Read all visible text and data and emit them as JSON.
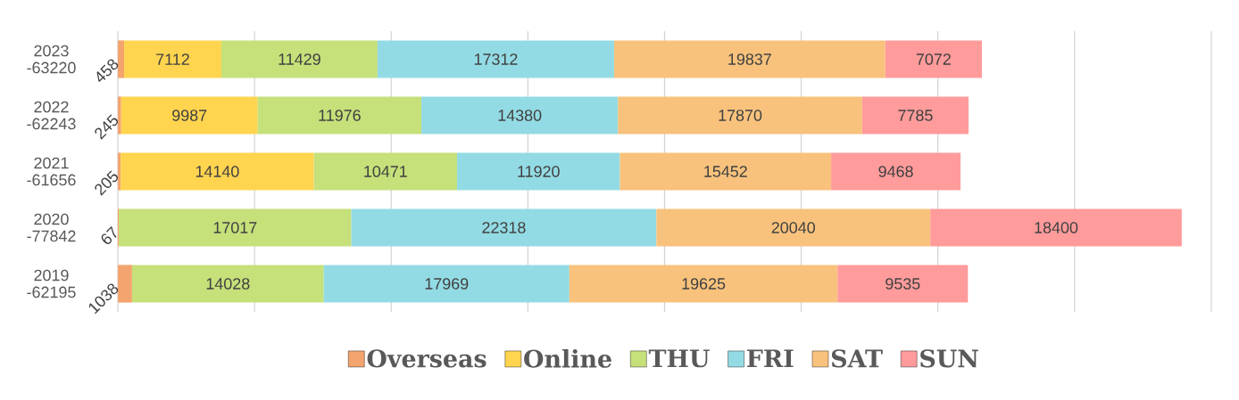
{
  "chart_data": {
    "type": "bar",
    "orientation": "horizontal",
    "stacked": true,
    "categories": [
      "2023 -63220",
      "2022 -62243",
      "2021 -61656",
      "2020 -77842",
      "2019 -62195"
    ],
    "series": [
      {
        "name": "Overseas",
        "color": "#f4a46e",
        "values": [
          458,
          245,
          205,
          67,
          1038
        ]
      },
      {
        "name": "Online",
        "color": "#ffd44f",
        "values": [
          7112,
          9987,
          14140,
          null,
          null
        ]
      },
      {
        "name": "THU",
        "color": "#c6e07a",
        "values": [
          11429,
          11976,
          10471,
          17017,
          14028
        ]
      },
      {
        "name": "FRI",
        "color": "#93dbe4",
        "values": [
          17312,
          14380,
          11920,
          22318,
          17969
        ]
      },
      {
        "name": "SAT",
        "color": "#f8c27c",
        "values": [
          19837,
          17870,
          15452,
          20040,
          19625
        ]
      },
      {
        "name": "SUN",
        "color": "#ff9b9b",
        "values": [
          7072,
          7785,
          9468,
          18400,
          9535
        ]
      }
    ],
    "xlim": [
      0,
      80000
    ],
    "xticks": [
      {
        "value": 0,
        "label": null
      },
      {
        "value": 10000,
        "label": null
      },
      {
        "value": 20000,
        "label": null
      },
      {
        "value": 30000,
        "label": null
      },
      {
        "value": 40000,
        "label": null
      },
      {
        "value": 50000,
        "label": null
      },
      {
        "value": 60000,
        "label": null
      },
      {
        "value": 70000,
        "label": null
      },
      {
        "value": 80000,
        "label": null
      }
    ],
    "grid": "x",
    "legend": "bottom",
    "data_labels": true,
    "tick_labels": "y"
  }
}
